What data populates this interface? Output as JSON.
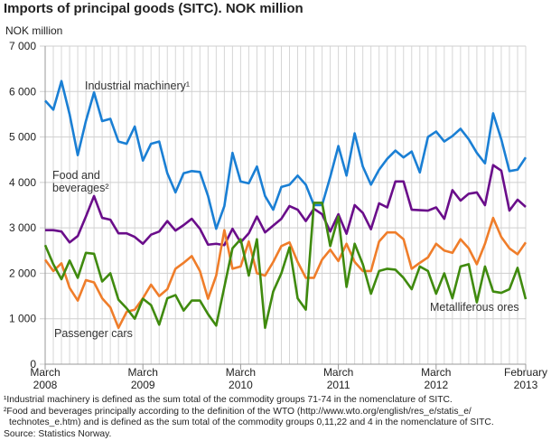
{
  "chart_data": {
    "type": "line",
    "title": "Imports of principal goods (SITC). NOK million",
    "ylabel": "NOK million",
    "ylim": [
      0,
      7000
    ],
    "yticks": [
      "0",
      "1 000",
      "2 000",
      "3 000",
      "4 000",
      "5 000",
      "6 000",
      "7 000"
    ],
    "x_start": "March 2008",
    "x_end": "February 2013",
    "frequency": "monthly",
    "xticks": [
      {
        "month": 0,
        "label1": "March",
        "label2": "2008"
      },
      {
        "month": 12,
        "label1": "March",
        "label2": "2009"
      },
      {
        "month": 24,
        "label1": "March",
        "label2": "2010"
      },
      {
        "month": 36,
        "label1": "March",
        "label2": "2011"
      },
      {
        "month": 48,
        "label1": "March",
        "label2": "2012"
      },
      {
        "month": 59,
        "label1": "February",
        "label2": "2013"
      }
    ],
    "grid": true,
    "series": [
      {
        "name": "Industrial machinery¹",
        "color": "#1a7fd4",
        "values": [
          5800,
          5600,
          6230,
          5500,
          4600,
          5350,
          5980,
          5350,
          5400,
          4900,
          4850,
          5230,
          4480,
          4850,
          4900,
          4200,
          3780,
          4200,
          4250,
          4230,
          3700,
          2980,
          3480,
          4650,
          4020,
          3980,
          4350,
          3700,
          3400,
          3900,
          3950,
          4150,
          3950,
          3500,
          3500,
          4120,
          4800,
          4150,
          5080,
          4350,
          3950,
          4280,
          4520,
          4700,
          4550,
          4680,
          4220,
          5000,
          5120,
          4900,
          5020,
          5180,
          4950,
          4650,
          4420,
          5520,
          4950,
          4250,
          4280,
          4550
        ]
      },
      {
        "name": "Food and beverages²",
        "color": "#6a0d8a",
        "values": [
          2950,
          2950,
          2920,
          2680,
          2820,
          3250,
          3700,
          3220,
          3180,
          2880,
          2880,
          2800,
          2650,
          2850,
          2920,
          3150,
          2940,
          3060,
          3200,
          2980,
          2630,
          2650,
          2620,
          2980,
          2680,
          2880,
          3250,
          2900,
          3050,
          3200,
          3480,
          3400,
          3150,
          3420,
          3300,
          2920,
          3300,
          2870,
          3500,
          3330,
          2970,
          3540,
          3450,
          4020,
          4020,
          3400,
          3390,
          3380,
          3450,
          3200,
          3830,
          3600,
          3750,
          3780,
          3500,
          4380,
          4260,
          3380,
          3620,
          3460
        ]
      },
      {
        "name": "Passenger cars",
        "color": "#ef7d2a",
        "values": [
          2300,
          2050,
          2220,
          1680,
          1400,
          1850,
          1800,
          1450,
          1250,
          800,
          1150,
          1200,
          1450,
          1750,
          1500,
          1650,
          2100,
          2230,
          2380,
          2050,
          1440,
          1950,
          2950,
          2100,
          2150,
          2700,
          2000,
          1950,
          2250,
          2600,
          2680,
          2250,
          1900,
          1900,
          2300,
          2520,
          2270,
          2650,
          2250,
          2050,
          2050,
          2700,
          2900,
          2900,
          2750,
          2100,
          2230,
          2350,
          2650,
          2500,
          2450,
          2750,
          2550,
          2200,
          2650,
          3220,
          2800,
          2550,
          2420,
          2680
        ]
      },
      {
        "name": "Metalliferous ores",
        "color": "#3f8a0e",
        "values": [
          2620,
          2200,
          1870,
          2280,
          1900,
          2450,
          2430,
          1820,
          2000,
          1420,
          1230,
          1000,
          1440,
          1300,
          870,
          1450,
          1520,
          1180,
          1400,
          1400,
          1100,
          850,
          1700,
          2550,
          2750,
          1950,
          2750,
          800,
          1600,
          2000,
          2570,
          1450,
          1200,
          3550,
          3550,
          2600,
          3250,
          1700,
          2650,
          2200,
          1550,
          2050,
          2100,
          2080,
          1900,
          1650,
          2150,
          2050,
          1550,
          2000,
          1450,
          2150,
          2200,
          1360,
          2150,
          1600,
          1570,
          1650,
          2120,
          1430
        ]
      }
    ]
  },
  "footnotes": [
    "¹Industrial machinery is defined as the sum total of the commodity groups 71-74 in the nomenclature of SITC.",
    "²Food and beverages principally according to the definition of the WTO (http://www.wto.org/english/res_e/statis_e/",
    "technotes_e.htm) and is defined as the sum total of the commodity groups 0,11,22 and 4 in the nomenclature of SITC.",
    "Source: Statistics Norway."
  ]
}
